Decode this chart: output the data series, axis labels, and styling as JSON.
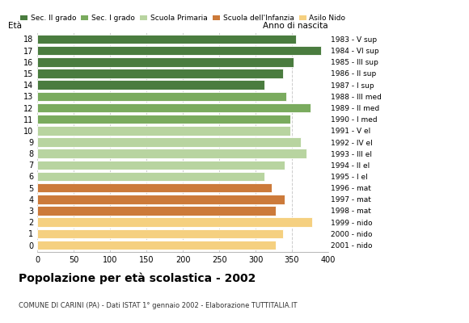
{
  "ages": [
    18,
    17,
    16,
    15,
    14,
    13,
    12,
    11,
    10,
    9,
    8,
    7,
    6,
    5,
    4,
    3,
    2,
    1,
    0
  ],
  "values": [
    355,
    390,
    352,
    338,
    312,
    342,
    375,
    348,
    348,
    362,
    370,
    340,
    312,
    322,
    340,
    328,
    378,
    338,
    328
  ],
  "right_labels": [
    "1983 - V sup",
    "1984 - VI sup",
    "1985 - III sup",
    "1986 - II sup",
    "1987 - I sup",
    "1988 - III med",
    "1989 - II med",
    "1990 - I med",
    "1991 - V el",
    "1992 - IV el",
    "1993 - III el",
    "1994 - II el",
    "1995 - I el",
    "1996 - mat",
    "1997 - mat",
    "1998 - mat",
    "1999 - nido",
    "2000 - nido",
    "2001 - nido"
  ],
  "colors": [
    "#4a7c3f",
    "#4a7c3f",
    "#4a7c3f",
    "#4a7c3f",
    "#4a7c3f",
    "#7aab5e",
    "#7aab5e",
    "#7aab5e",
    "#b8d4a0",
    "#b8d4a0",
    "#b8d4a0",
    "#b8d4a0",
    "#b8d4a0",
    "#cc7a3a",
    "#cc7a3a",
    "#cc7a3a",
    "#f5d080",
    "#f5d080",
    "#f5d080"
  ],
  "legend_labels": [
    "Sec. II grado",
    "Sec. I grado",
    "Scuola Primaria",
    "Scuola dell'Infanzia",
    "Asilo Nido"
  ],
  "legend_colors": [
    "#4a7c3f",
    "#7aab5e",
    "#b8d4a0",
    "#cc7a3a",
    "#f5d080"
  ],
  "title": "Popolazione per età scolastica - 2002",
  "subtitle": "COMUNE DI CARINI (PA) - Dati ISTAT 1° gennaio 2002 - Elaborazione TUTTITALIA.IT",
  "label_eta": "Età",
  "label_anno": "Anno di nascita",
  "xlim": [
    0,
    400
  ],
  "xticks": [
    0,
    50,
    100,
    150,
    200,
    250,
    300,
    350,
    400
  ],
  "background_color": "#ffffff",
  "grid_color": "#cccccc"
}
